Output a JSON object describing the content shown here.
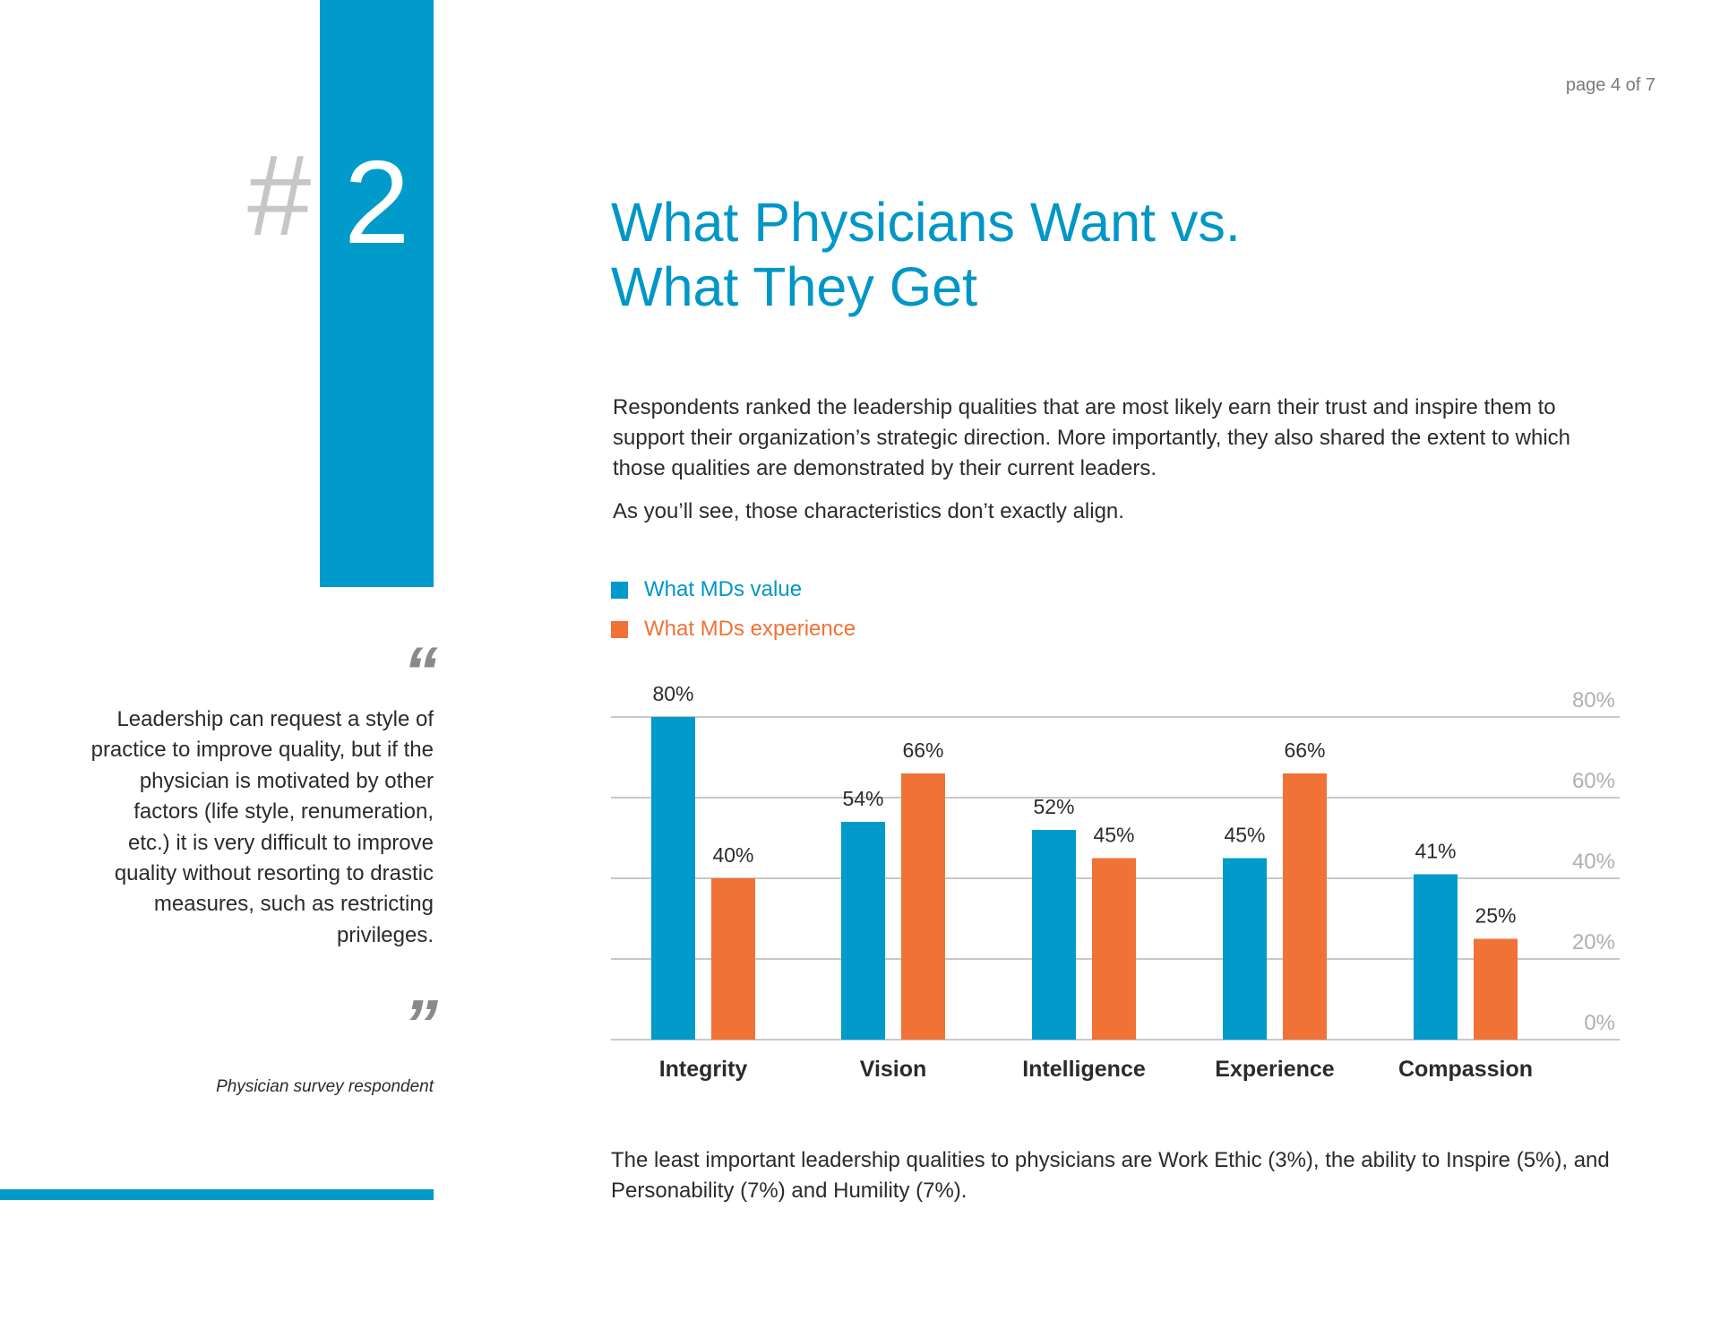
{
  "page": {
    "page_number": "page 4 of 7",
    "section_hash": "#",
    "section_number": "2",
    "title_line1": "What Physicians Want vs.",
    "title_line2": "What They Get",
    "intro": "Respondents ranked the leadership qualities that are most likely earn their trust and inspire them to support their organization’s strategic direction. More importantly, they also shared the extent to which those qualities are demonstrated by their current leaders.",
    "intro2": "As you’ll see, those characteristics  don’t exactly align.",
    "note": "The least important leadership qualities to physicians are Work Ethic (3%), the ability to Inspire (5%), and Personability (7%) and Humility (7%)."
  },
  "quote": {
    "open_mark": "“",
    "text": "Leadership can request a style of practice to improve quality, but if the physician is motivated by other factors (life style, renumeration, etc.) it is very difficult to improve quality without resorting to drastic measures, such as restricting privileges.",
    "close_mark": "”",
    "attribution": "Physician survey respondent"
  },
  "colors": {
    "brand_blue": "#009ACB",
    "accent_orange": "#F07236",
    "grid": "#c8c8c8",
    "tick_text": "#b0b0b0"
  },
  "chart_data": {
    "type": "bar",
    "categories": [
      "Integrity",
      "Vision",
      "Intelligence",
      "Experience",
      "Compassion"
    ],
    "series": [
      {
        "name": "What MDs value",
        "color": "#009ACB",
        "values": [
          80,
          54,
          52,
          45,
          41
        ],
        "labels": [
          "80%",
          "54%",
          "52%",
          "45%",
          "41%"
        ]
      },
      {
        "name": "What MDs experience",
        "color": "#F07236",
        "values": [
          40,
          66,
          45,
          66,
          25
        ],
        "labels": [
          "40%",
          "66%",
          "45%",
          "66%",
          "25%"
        ]
      }
    ],
    "ylim": [
      0,
      80
    ],
    "yticks": [
      0,
      20,
      40,
      60,
      80
    ],
    "ytick_labels": [
      "0%",
      "20%",
      "40%",
      "60%",
      "80%"
    ],
    "y_axis_side": "right",
    "grid": true,
    "legend_position": "top-left"
  }
}
